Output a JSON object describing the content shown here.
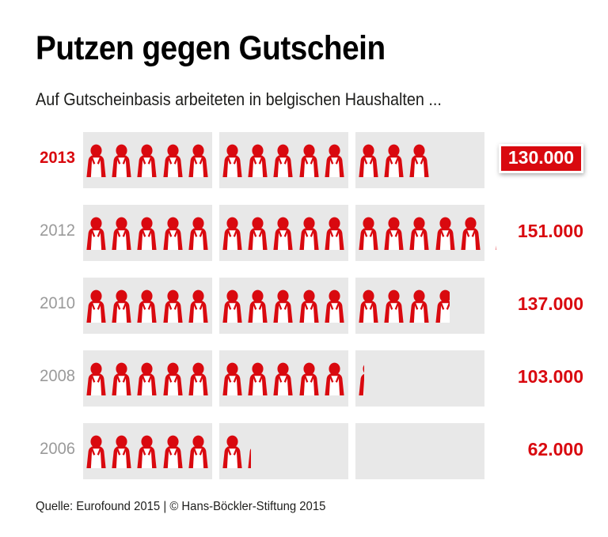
{
  "header": {
    "title": "Putzen gegen Gutschein",
    "subtitle": "Auf Gutscheinbasis arbeiteten in belgischen Haushalten ..."
  },
  "chart_data": {
    "type": "pictogram-bar",
    "icon": "person-with-apron",
    "unit_per_icon": 10000,
    "icons_per_block": 5,
    "blocks_per_row": 3,
    "categories": [
      "2013",
      "2012",
      "2010",
      "2008",
      "2006"
    ],
    "values": [
      130000,
      151000,
      137000,
      103000,
      62000
    ],
    "rows": [
      {
        "year": "2013",
        "value": 130000,
        "value_label": "130.000",
        "highlight": true
      },
      {
        "year": "2012",
        "value": 151000,
        "value_label": "151.000",
        "highlight": false
      },
      {
        "year": "2010",
        "value": 137000,
        "value_label": "137.000",
        "highlight": false
      },
      {
        "year": "2008",
        "value": 103000,
        "value_label": "103.000",
        "highlight": false
      },
      {
        "year": "2006",
        "value": 62000,
        "value_label": "62.000",
        "highlight": false
      }
    ],
    "colors": {
      "accent": "#d9090f",
      "band": "#e8e8e8",
      "year_muted": "#9a9a9a",
      "badge_text": "#ffffff"
    }
  },
  "footer": {
    "source": "Quelle: Eurofound 2015 | © Hans-Böckler-Stiftung 2015"
  }
}
